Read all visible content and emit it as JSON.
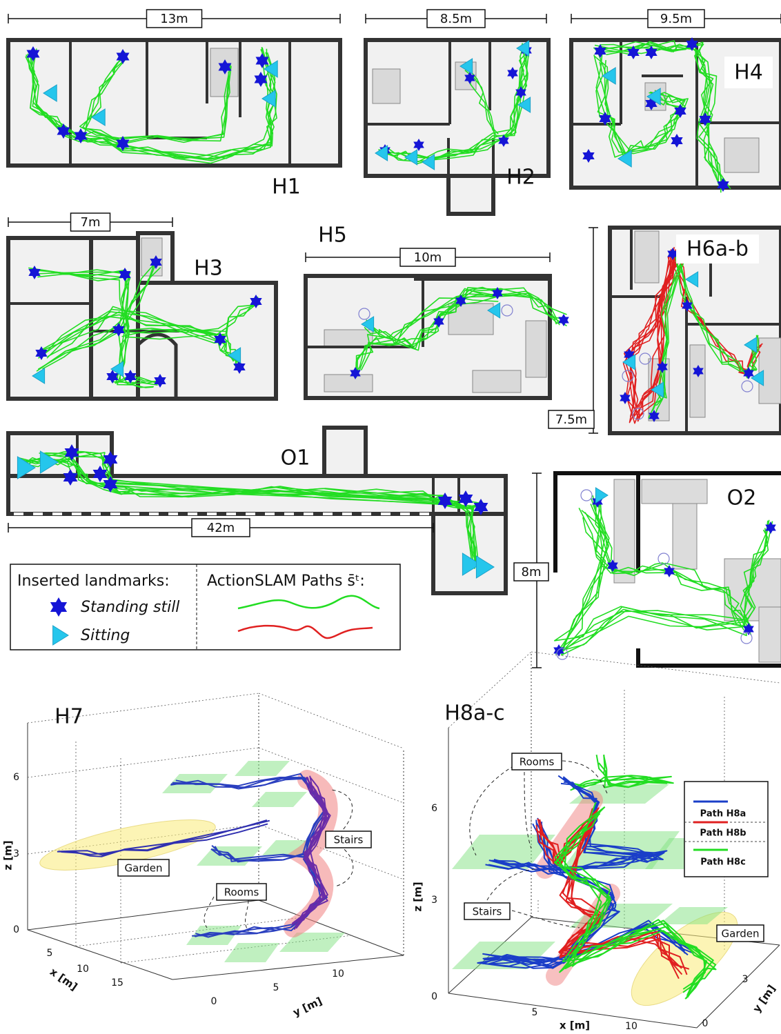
{
  "panels": [
    {
      "label": "H1",
      "scale": "13m"
    },
    {
      "label": "H2",
      "scale": "8.5m"
    },
    {
      "label": "H4",
      "scale": "9.5m"
    },
    {
      "label": "H3",
      "scale": "7m"
    },
    {
      "label": "H5",
      "scale": "10m"
    },
    {
      "label": "H6a-b",
      "scale": "7.5m"
    },
    {
      "label": "O1",
      "scale": "42m"
    },
    {
      "label": "O2",
      "scale": "8m"
    }
  ],
  "legend": {
    "landmarks_title": "Inserted landmarks:",
    "standing": "Standing still",
    "sitting": "Sitting",
    "paths_title": "ActionSLAM Paths s̄ᵗ:"
  },
  "plots": [
    {
      "title": "H7",
      "z_label": "z [m]",
      "x_label": "x [m]",
      "y_label": "y [m]",
      "z_ticks": [
        6,
        3,
        0
      ],
      "x_ticks": [
        5,
        10,
        15
      ],
      "y_ticks": [
        0,
        5,
        10
      ],
      "annotations": [
        "Garden",
        "Rooms",
        "Stairs"
      ]
    },
    {
      "title": "H8a-c",
      "z_label": "z [m]",
      "x_label": "x [m]",
      "y_label": "y [m]",
      "z_ticks": [
        6,
        3,
        0
      ],
      "x_ticks": [
        5,
        10
      ],
      "y_ticks": [
        3,
        0
      ],
      "annotations": [
        "Rooms",
        "Stairs",
        "Garden"
      ],
      "legend": [
        "Path H8a",
        "Path H8b",
        "Path H8c"
      ]
    }
  ]
}
